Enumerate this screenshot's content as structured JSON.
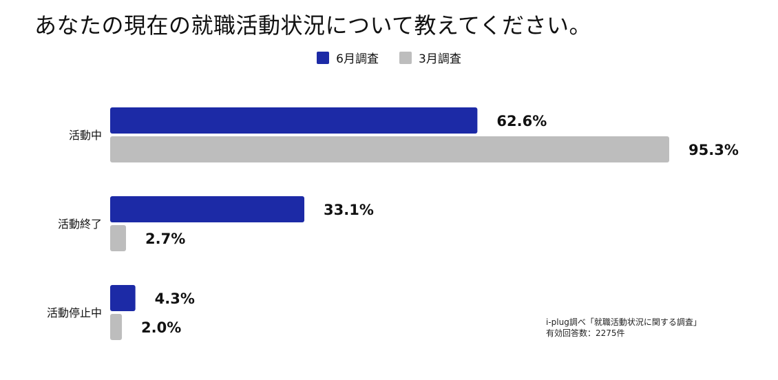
{
  "title": "あなたの現在の就職活動状況について教えてください。",
  "legend": [
    {
      "label": "6月調査",
      "color": "#1c2aa6"
    },
    {
      "label": "3月調査",
      "color": "#bdbdbd"
    }
  ],
  "source": {
    "line1": "i-plug調べ「就職活動状況に関する調査」",
    "line2": "有効回答数：2275件"
  },
  "chart_data": {
    "type": "bar",
    "orientation": "horizontal",
    "categories": [
      "活動中",
      "活動終了",
      "活動停止中"
    ],
    "series": [
      {
        "name": "6月調査",
        "color": "#1c2aa6",
        "values": [
          62.6,
          33.1,
          4.3
        ],
        "labels": [
          "62.6%",
          "33.1%",
          "4.3%"
        ]
      },
      {
        "name": "3月調査",
        "color": "#bdbdbd",
        "values": [
          95.3,
          2.7,
          2.0
        ],
        "labels": [
          "95.3%",
          "2.7%",
          "2.0%"
        ]
      }
    ],
    "xlim": [
      0,
      95.3
    ],
    "grid": false,
    "legend_position": "top"
  }
}
